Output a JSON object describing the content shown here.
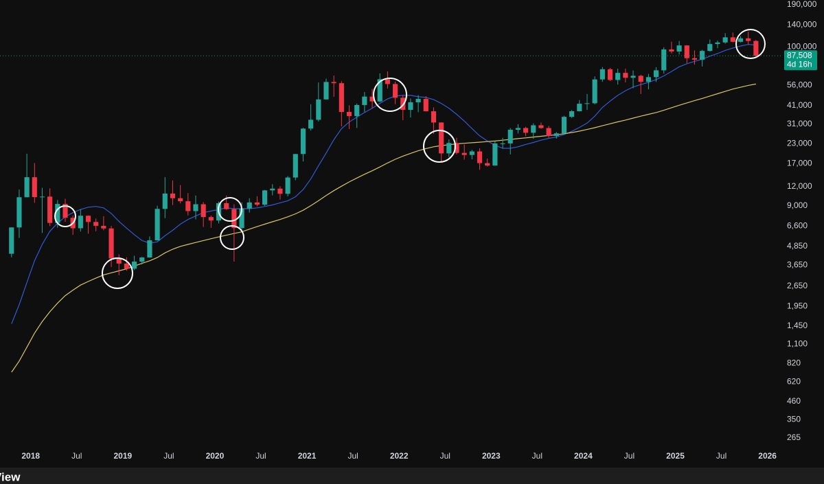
{
  "chart_data": {
    "type": "candlestick",
    "log_scale": true,
    "grid": false,
    "background": "#0f0f0f",
    "up_color": "#26a69a",
    "down_color": "#f23645",
    "x": [
      "2017-10",
      "2017-11",
      "2017-12",
      "2018-01",
      "2018-02",
      "2018-03",
      "2018-04",
      "2018-05",
      "2018-06",
      "2018-07",
      "2018-08",
      "2018-09",
      "2018-10",
      "2018-11",
      "2018-12",
      "2019-01",
      "2019-02",
      "2019-03",
      "2019-04",
      "2019-05",
      "2019-06",
      "2019-07",
      "2019-08",
      "2019-09",
      "2019-10",
      "2019-11",
      "2019-12",
      "2020-01",
      "2020-02",
      "2020-03",
      "2020-04",
      "2020-05",
      "2020-06",
      "2020-07",
      "2020-08",
      "2020-09",
      "2020-10",
      "2020-11",
      "2020-12",
      "2021-01",
      "2021-02",
      "2021-03",
      "2021-04",
      "2021-05",
      "2021-06",
      "2021-07",
      "2021-08",
      "2021-09",
      "2021-10",
      "2021-11",
      "2021-12",
      "2022-01",
      "2022-02",
      "2022-03",
      "2022-04",
      "2022-05",
      "2022-06",
      "2022-07",
      "2022-08",
      "2022-09",
      "2022-10",
      "2022-11",
      "2022-12",
      "2023-01",
      "2023-02",
      "2023-03",
      "2023-04",
      "2023-05",
      "2023-06",
      "2023-07",
      "2023-08",
      "2023-09",
      "2023-10",
      "2023-11",
      "2023-12",
      "2024-01",
      "2024-02",
      "2024-03",
      "2024-04",
      "2024-05",
      "2024-06",
      "2024-07",
      "2024-08",
      "2024-09",
      "2024-10",
      "2024-11",
      "2024-12",
      "2025-01",
      "2025-02",
      "2025-03",
      "2025-04",
      "2025-05",
      "2025-06",
      "2025-07",
      "2025-08",
      "2025-09",
      "2025-10",
      "2025-11"
    ],
    "open": [
      4340,
      6470,
      10230,
      13860,
      10260,
      10330,
      6930,
      9240,
      7490,
      6390,
      7730,
      7030,
      6630,
      6370,
      4040,
      3740,
      3460,
      3850,
      4100,
      5320,
      8570,
      10820,
      10080,
      9630,
      8290,
      9200,
      7570,
      7190,
      9350,
      8540,
      6410,
      8630,
      9450,
      9140,
      11350,
      11660,
      10780,
      13800,
      19710,
      28990,
      33140,
      45140,
      58800,
      57750,
      37330,
      35040,
      41460,
      47100,
      43800,
      61300,
      57000,
      46300,
      38500,
      43200,
      45500,
      37700,
      31800,
      19900,
      23300,
      20050,
      19430,
      20500,
      17170,
      16550,
      23140,
      23150,
      28480,
      29250,
      27220,
      30480,
      29230,
      25940,
      26970,
      34650,
      37720,
      42280,
      42580,
      61130,
      71330,
      60640,
      67500,
      62700,
      64600,
      58970,
      63300,
      70200,
      96400,
      93400,
      102400,
      84400,
      82500,
      94200,
      104600,
      107100,
      115800,
      108200,
      114000,
      109600
    ],
    "high": [
      6470,
      11500,
      19800,
      17200,
      11800,
      11700,
      9800,
      9990,
      7770,
      8490,
      7760,
      7410,
      7680,
      6620,
      4300,
      4110,
      4210,
      4130,
      5640,
      9000,
      13880,
      13200,
      12300,
      10900,
      10500,
      9500,
      7750,
      9580,
      10500,
      9190,
      9470,
      10070,
      10390,
      11440,
      12470,
      12070,
      14100,
      19750,
      29300,
      41950,
      58350,
      61800,
      64900,
      59500,
      41300,
      42400,
      50500,
      52900,
      67000,
      69000,
      59100,
      48000,
      45800,
      48200,
      47400,
      40000,
      31900,
      24600,
      25200,
      22800,
      21000,
      21500,
      18400,
      23900,
      25200,
      29200,
      31000,
      29800,
      31400,
      31800,
      30200,
      27500,
      35200,
      38400,
      44700,
      49000,
      64000,
      73800,
      72800,
      71900,
      72000,
      70000,
      65600,
      66500,
      73600,
      99600,
      108300,
      109600,
      102500,
      95000,
      95800,
      111900,
      110400,
      123200,
      124500,
      117900,
      126200,
      111200
    ],
    "low": [
      4110,
      5520,
      10900,
      9400,
      5950,
      6600,
      6450,
      7050,
      5780,
      6080,
      5880,
      6100,
      6200,
      3550,
      3130,
      3350,
      3390,
      3690,
      4100,
      5300,
      7450,
      9080,
      9320,
      7760,
      7310,
      6520,
      6430,
      6870,
      8450,
      3850,
      6150,
      8110,
      8900,
      8990,
      10520,
      9880,
      10370,
      13220,
      17600,
      28130,
      32300,
      45000,
      47000,
      30000,
      28800,
      29300,
      37300,
      39600,
      43300,
      53300,
      42000,
      32900,
      34300,
      37200,
      37600,
      26700,
      17600,
      18800,
      19600,
      18100,
      18200,
      15500,
      16300,
      16500,
      21400,
      19600,
      26900,
      25800,
      24800,
      28900,
      25200,
      24900,
      26600,
      34100,
      37600,
      38500,
      41900,
      59000,
      59600,
      56500,
      58400,
      53500,
      49000,
      52600,
      58900,
      66800,
      90500,
      89200,
      78200,
      76600,
      74400,
      93400,
      98200,
      105100,
      107300,
      107300,
      103500,
      86500
    ],
    "close": [
      6470,
      10230,
      13860,
      10260,
      10330,
      6930,
      9240,
      7490,
      6390,
      7730,
      7030,
      6630,
      6370,
      4040,
      3740,
      3460,
      3850,
      4100,
      5320,
      8570,
      10820,
      10080,
      9630,
      8290,
      9200,
      7570,
      7190,
      9350,
      8540,
      6410,
      8630,
      9450,
      9140,
      11350,
      11660,
      10780,
      13800,
      19710,
      28990,
      33140,
      45140,
      58800,
      57750,
      37330,
      35040,
      41460,
      47100,
      43800,
      61300,
      57000,
      46300,
      38500,
      43200,
      45500,
      37700,
      31800,
      19900,
      23300,
      20050,
      19430,
      20500,
      17170,
      16550,
      23140,
      23150,
      28480,
      29250,
      27220,
      30480,
      29230,
      25940,
      26970,
      34650,
      37720,
      42280,
      42580,
      61130,
      71330,
      60640,
      67500,
      62700,
      64600,
      58970,
      63300,
      70200,
      96400,
      93400,
      102400,
      84400,
      82500,
      94200,
      104600,
      107100,
      115800,
      108200,
      114000,
      109600,
      87508
    ],
    "lines": [
      {
        "color": "#2f5bd6",
        "values": [
          1500,
          2000,
          2800,
          3900,
          5000,
          6100,
          6900,
          7600,
          8100,
          8500,
          8800,
          8900,
          8700,
          8000,
          7100,
          6400,
          5800,
          5300,
          5100,
          5200,
          5700,
          6200,
          6800,
          7300,
          7700,
          8100,
          8300,
          8500,
          8700,
          8600,
          8600,
          8600,
          8700,
          8900,
          9100,
          9400,
          9700,
          10300,
          11500,
          13500,
          16500,
          20000,
          24500,
          29000,
          32000,
          34500,
          37000,
          39500,
          42500,
          45500,
          47500,
          48000,
          48000,
          47000,
          46500,
          45000,
          42500,
          39500,
          36000,
          32500,
          29000,
          26000,
          24000,
          22500,
          21500,
          21500,
          22000,
          22800,
          23500,
          24300,
          25000,
          25500,
          26500,
          27800,
          29500,
          31500,
          35000,
          40000,
          44000,
          48000,
          51500,
          54500,
          56500,
          58500,
          61000,
          64500,
          69000,
          74000,
          77500,
          80500,
          83000,
          87000,
          90500,
          95000,
          98500,
          101500,
          104000,
          103000
        ]
      },
      {
        "color": "#d8c667",
        "values": [
          720,
          850,
          1050,
          1300,
          1550,
          1800,
          2050,
          2300,
          2500,
          2700,
          2850,
          3000,
          3150,
          3250,
          3350,
          3450,
          3600,
          3750,
          3900,
          4100,
          4400,
          4650,
          4850,
          5000,
          5150,
          5300,
          5450,
          5600,
          5750,
          5900,
          6050,
          6300,
          6550,
          6800,
          7050,
          7300,
          7600,
          7950,
          8400,
          9000,
          9700,
          10500,
          11300,
          12100,
          12900,
          13700,
          14500,
          15300,
          16200,
          17200,
          18200,
          19100,
          19900,
          20700,
          21400,
          22000,
          22400,
          22700,
          23000,
          23200,
          23400,
          23600,
          23800,
          24000,
          24300,
          24600,
          24900,
          25200,
          25500,
          25800,
          26100,
          26400,
          26800,
          27300,
          27900,
          28600,
          29400,
          30300,
          31200,
          32100,
          33000,
          34000,
          35000,
          36000,
          37000,
          38300,
          39800,
          41300,
          42800,
          44300,
          45800,
          47500,
          49200,
          51000,
          52800,
          54300,
          55800,
          57000
        ]
      }
    ],
    "xlim": [
      "2017-09",
      "2026-03"
    ],
    "xticks": [
      {
        "value": "2018-01",
        "label": "2018"
      },
      {
        "value": "2018-07",
        "label": "Jul"
      },
      {
        "value": "2019-01",
        "label": "2019"
      },
      {
        "value": "2019-07",
        "label": "Jul"
      },
      {
        "value": "2020-01",
        "label": "2020"
      },
      {
        "value": "2020-07",
        "label": "Jul"
      },
      {
        "value": "2021-01",
        "label": "2021"
      },
      {
        "value": "2021-07",
        "label": "Jul"
      },
      {
        "value": "2022-01",
        "label": "2022"
      },
      {
        "value": "2022-07",
        "label": "Jul"
      },
      {
        "value": "2023-01",
        "label": "2023"
      },
      {
        "value": "2023-07",
        "label": "Jul"
      },
      {
        "value": "2024-01",
        "label": "2024"
      },
      {
        "value": "2024-07",
        "label": "Jul"
      },
      {
        "value": "2025-01",
        "label": "2025"
      },
      {
        "value": "2025-07",
        "label": "Jul"
      },
      {
        "value": "2026-01",
        "label": "2026"
      }
    ],
    "ylim": [
      222,
      204000
    ],
    "yticks": [
      265,
      350,
      460,
      620,
      820,
      {
        "value": 1100,
        "label": "1,100"
      },
      {
        "value": 1450,
        "label": "1,450"
      },
      {
        "value": 1950,
        "label": "1,950"
      },
      {
        "value": 2650,
        "label": "2,650"
      },
      {
        "value": 3650,
        "label": "3,650"
      },
      {
        "value": 4850,
        "label": "4,850"
      },
      {
        "value": 6600,
        "label": "6,600"
      },
      {
        "value": 9000,
        "label": "9,000"
      },
      {
        "value": 12000,
        "label": "12,000"
      },
      {
        "value": 17000,
        "label": "17,000"
      },
      {
        "value": 23000,
        "label": "23,000"
      },
      {
        "value": 31000,
        "label": "31,000"
      },
      {
        "value": 41000,
        "label": "41,000"
      },
      {
        "value": 56000,
        "label": "56,000"
      },
      {
        "value": 100000,
        "label": "100,000"
      },
      {
        "value": 140000,
        "label": "140,000"
      },
      {
        "value": 190000,
        "label": "190,000"
      }
    ],
    "price_label": {
      "value": 87508,
      "label": "87,508",
      "color": "#089981"
    },
    "countdown": "4d 16h"
  },
  "footer_text": "View"
}
